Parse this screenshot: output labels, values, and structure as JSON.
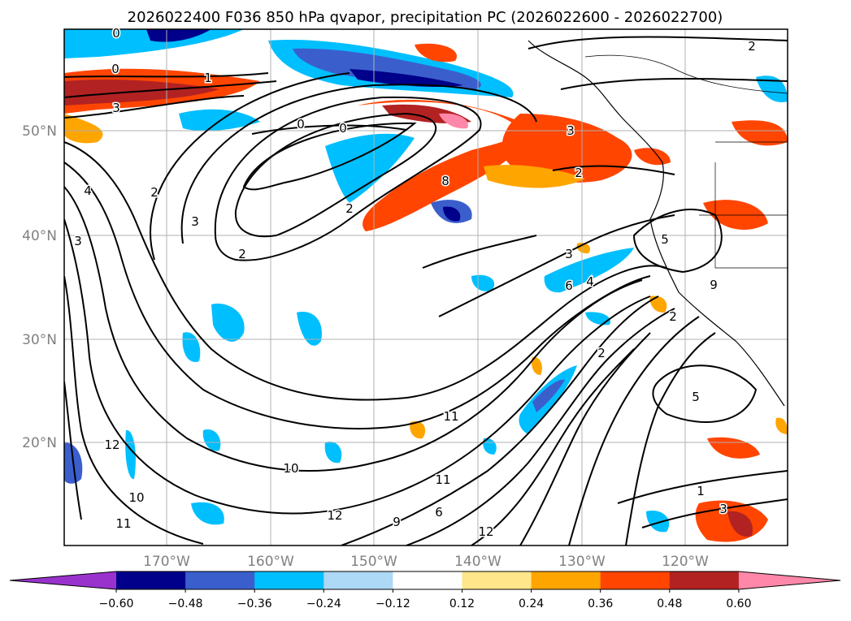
{
  "figure": {
    "title": "2026022400 F036 850 hPa qvapor, precipitation PC (2026022600 - 2026022700)"
  },
  "map": {
    "lon_labels": [
      "170°W",
      "160°W",
      "150°W",
      "140°W",
      "130°W",
      "120°W"
    ],
    "lat_labels": [
      "50°N",
      "40°N",
      "30°N",
      "20°N"
    ],
    "contour_labels": [
      "0",
      "0",
      "1",
      "3",
      "0",
      "0",
      "2",
      "3",
      "2",
      "4",
      "2",
      "3",
      "2",
      "3",
      "2",
      "8",
      "5",
      "6",
      "4",
      "2",
      "2",
      "3",
      "5",
      "9",
      "10",
      "11",
      "12",
      "11",
      "10",
      "12",
      "9",
      "11",
      "12",
      "1",
      "6",
      "3"
    ]
  },
  "colorbar": {
    "ticks": [
      "−0.60",
      "−0.48",
      "−0.36",
      "−0.24",
      "−0.12",
      "0.12",
      "0.24",
      "0.36",
      "0.48",
      "0.60"
    ],
    "colors": [
      "#9932cc",
      "#00008b",
      "#3a5fcd",
      "#00bfff",
      "#add8f6",
      "#ffffff",
      "#ffe68a",
      "#ffa500",
      "#ff4500",
      "#b22222",
      "#ff88aa"
    ]
  }
}
